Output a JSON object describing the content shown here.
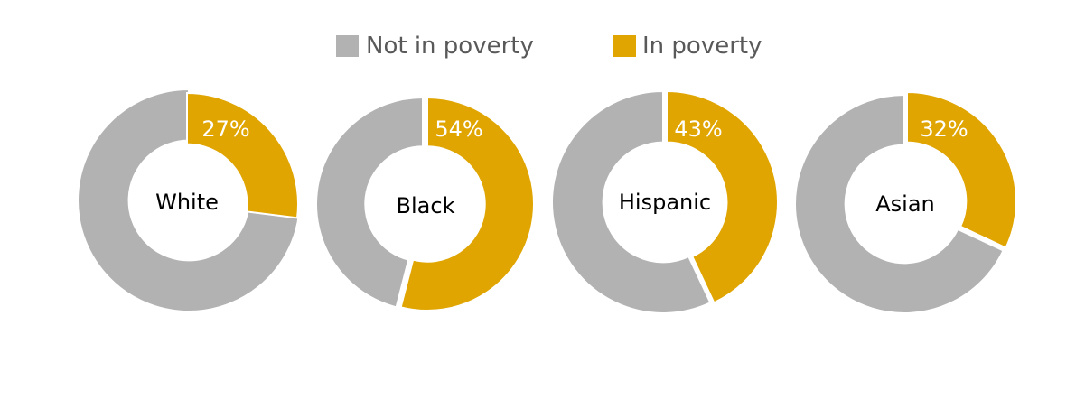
{
  "chart_data": {
    "type": "pie",
    "variant": "donut",
    "legend_position": "top",
    "series": [
      {
        "name": "Not in poverty",
        "color": "#b2b2b2"
      },
      {
        "name": "In poverty",
        "color": "#e0a500"
      }
    ],
    "donuts": [
      {
        "label": "White",
        "in_poverty": 27,
        "not_in_poverty": 73,
        "value_label": "27%"
      },
      {
        "label": "Black",
        "in_poverty": 54,
        "not_in_poverty": 46,
        "value_label": "54%"
      },
      {
        "label": "Hispanic",
        "in_poverty": 43,
        "not_in_poverty": 57,
        "value_label": "43%"
      },
      {
        "label": "Asian",
        "in_poverty": 32,
        "not_in_poverty": 68,
        "value_label": "32%"
      }
    ]
  }
}
